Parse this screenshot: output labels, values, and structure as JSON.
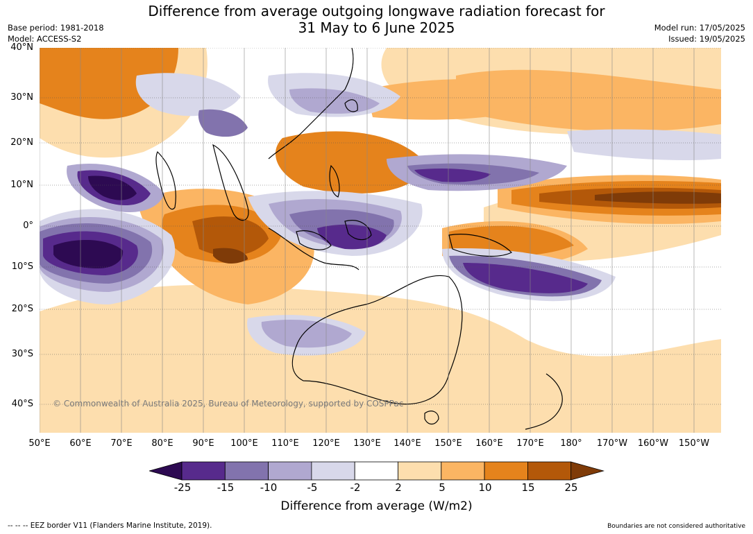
{
  "title_line1": "Difference from average outgoing longwave radiation forecast for",
  "title_line2": "31 May to 6 June 2025",
  "base_period": "Base period: 1981-2018",
  "model": "Model: ACCESS-S2",
  "model_run": "Model run: 17/05/2025",
  "issued": "Issued: 19/05/2025",
  "copyright": "© Commonwealth of Australia 2025, Bureau of Meteorology, supported by COSPPac",
  "latitude_labels": [
    "40°N",
    "30°N",
    "20°N",
    "10°N",
    "0°",
    "10°S",
    "20°S",
    "30°S",
    "40°S"
  ],
  "longitude_labels": [
    "50°E",
    "60°E",
    "70°E",
    "80°E",
    "90°E",
    "100°E",
    "110°E",
    "120°E",
    "130°E",
    "140°E",
    "150°E",
    "160°E",
    "170°E",
    "180°",
    "170°W",
    "160°W",
    "150°W"
  ],
  "colorbar": {
    "title": "Difference from average (W/m2)",
    "ticks": [
      "-25",
      "-15",
      "-10",
      "-5",
      "-2",
      "2",
      "5",
      "10",
      "15",
      "25"
    ],
    "colors": [
      "#2d0a52",
      "#572a8c",
      "#8273ad",
      "#b0a8d0",
      "#d8d8ea",
      "#ffffff",
      "#fddeae",
      "#fbb563",
      "#e5831c",
      "#b35809",
      "#7f3b08"
    ]
  },
  "footer_left": "--  --  -- EEZ border V11 (Flanders Marine Institute, 2019).",
  "footer_right": "Boundaries are not considered authoritative"
}
